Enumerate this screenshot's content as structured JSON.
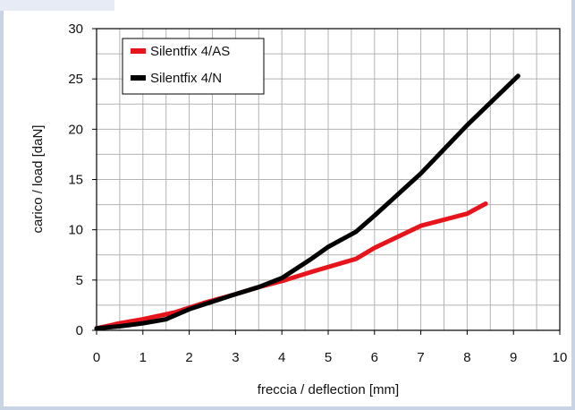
{
  "chart_data": {
    "type": "line",
    "title": "",
    "xlabel": "freccia / deflection [mm]",
    "ylabel": "carico / load [daN]",
    "xlim": [
      0,
      10
    ],
    "ylim": [
      0,
      30
    ],
    "xticks": [
      0,
      1,
      2,
      3,
      4,
      5,
      6,
      7,
      8,
      9,
      10
    ],
    "yticks": [
      0,
      5,
      10,
      15,
      20,
      25,
      30
    ],
    "grid": true,
    "legend_position": "top-left",
    "series": [
      {
        "name": "Silentfix 4/AS",
        "color": "#e8141c",
        "x": [
          0,
          0.5,
          1,
          1.7,
          2.3,
          3,
          3.5,
          4,
          4.7,
          5.6,
          6,
          7,
          8,
          8.4
        ],
        "y": [
          0.2,
          0.7,
          1.1,
          1.8,
          2.7,
          3.6,
          4.3,
          4.9,
          5.9,
          7.1,
          8.2,
          10.4,
          11.6,
          12.6
        ]
      },
      {
        "name": "Silentfix 4/N",
        "color": "#000000",
        "x": [
          0,
          0.5,
          1,
          1.5,
          2,
          3,
          3.5,
          4,
          4.6,
          5,
          5.6,
          6,
          7,
          8,
          9.1
        ],
        "y": [
          0.2,
          0.4,
          0.7,
          1.1,
          2.1,
          3.6,
          4.3,
          5.2,
          7,
          8.3,
          9.8,
          11.4,
          15.6,
          20.4,
          25.3
        ]
      }
    ]
  }
}
